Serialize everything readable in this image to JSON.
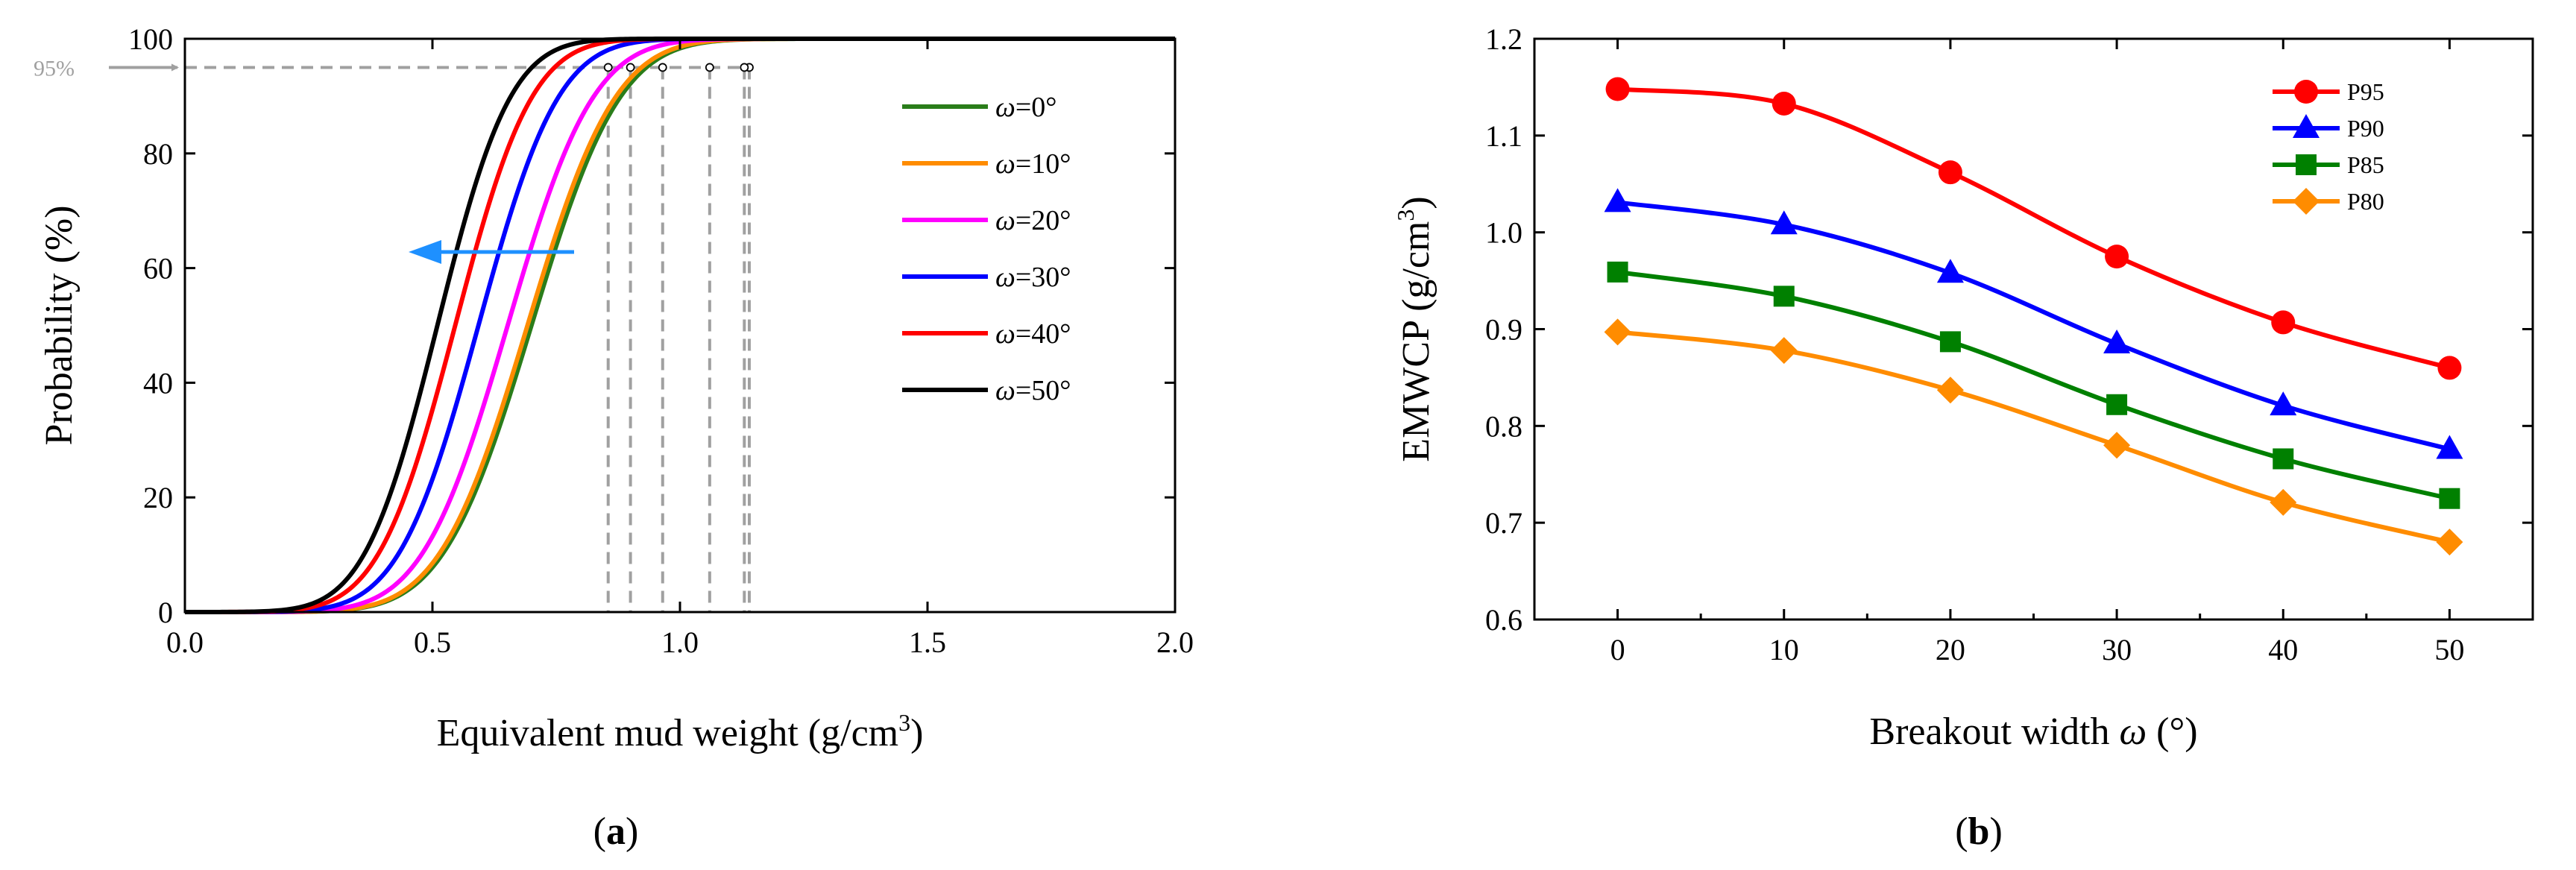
{
  "figure": {
    "panel_a_label": "a",
    "panel_b_label": "b"
  },
  "chart_data": [
    {
      "id": "a",
      "type": "line",
      "title": "",
      "xlabel": "Equivalent mud weight (g/cm",
      "xlabel_sup": "3",
      "xlabel_end": ")",
      "ylabel": "Probability (%)",
      "xlim": [
        0,
        2.0
      ],
      "ylim": [
        0,
        100
      ],
      "xticks": [
        0.0,
        0.5,
        1.0,
        1.5,
        2.0
      ],
      "xtick_labels": [
        "0.0",
        "0.5",
        "1.0",
        "1.5",
        "2.0"
      ],
      "yticks": [
        0,
        20,
        40,
        60,
        80,
        100
      ],
      "ytick_labels": [
        "0",
        "20",
        "40",
        "60",
        "80",
        "100"
      ],
      "grid": false,
      "legend_position": "right",
      "reference_line": {
        "y": 95,
        "label": "95%"
      },
      "arrow_note": "arrow pointing left: curves shift to lower mud weight as breakout width increases",
      "series": [
        {
          "name": "ω=0°",
          "symbol": "ω",
          "suffix": "=0°",
          "color": "#2a7d1a",
          "mu": 0.7,
          "s": 0.141,
          "x_at_95": 1.14
        },
        {
          "name": "ω=10°",
          "symbol": "ω",
          "suffix": "=10°",
          "color": "#ff8c00",
          "mu": 0.692,
          "s": 0.14,
          "x_at_95": 1.13
        },
        {
          "name": "ω=20°",
          "symbol": "ω",
          "suffix": "=20°",
          "color": "#ff00ff",
          "mu": 0.652,
          "s": 0.136,
          "x_at_95": 1.06
        },
        {
          "name": "ω=30°",
          "symbol": "ω",
          "suffix": "=30°",
          "color": "#0000ff",
          "mu": 0.593,
          "s": 0.127,
          "x_at_95": 0.965
        },
        {
          "name": "ω=40°",
          "symbol": "ω",
          "suffix": "=40°",
          "color": "#ff0000",
          "mu": 0.546,
          "s": 0.122,
          "x_at_95": 0.9
        },
        {
          "name": "ω=50°",
          "symbol": "ω",
          "suffix": "=50°",
          "color": "#000000",
          "mu": 0.51,
          "s": 0.116,
          "x_at_95": 0.855
        }
      ]
    },
    {
      "id": "b",
      "type": "line",
      "title": "",
      "xlabel": "Breakout width ",
      "xlabel_symbol": "ω",
      "xlabel_end": " (°)",
      "ylabel": "EMWCP (g/cm",
      "ylabel_sup": "3",
      "ylabel_end": ")",
      "xlim": [
        -5,
        55
      ],
      "ylim": [
        0.6,
        1.2
      ],
      "x": [
        0,
        10,
        20,
        30,
        40,
        50
      ],
      "xticks": [
        0,
        10,
        20,
        30,
        40,
        50
      ],
      "xtick_labels": [
        "0",
        "10",
        "20",
        "30",
        "40",
        "50"
      ],
      "yticks": [
        0.6,
        0.7,
        0.8,
        0.9,
        1.0,
        1.1,
        1.2
      ],
      "ytick_labels": [
        "0.6",
        "0.7",
        "0.8",
        "0.9",
        "1.0",
        "1.1",
        "1.2"
      ],
      "grid": false,
      "legend_position": "top-right",
      "series": [
        {
          "name": "P95",
          "color": "#ff0000",
          "marker": "circle",
          "values": [
            1.148,
            1.133,
            1.062,
            0.975,
            0.907,
            0.86
          ]
        },
        {
          "name": "P90",
          "color": "#0000ff",
          "marker": "triangle",
          "values": [
            1.031,
            1.008,
            0.958,
            0.885,
            0.821,
            0.776
          ]
        },
        {
          "name": "P85",
          "color": "#008000",
          "marker": "square",
          "values": [
            0.959,
            0.934,
            0.887,
            0.822,
            0.766,
            0.725
          ]
        },
        {
          "name": "P80",
          "color": "#ff8c00",
          "marker": "diamond",
          "values": [
            0.897,
            0.878,
            0.837,
            0.78,
            0.721,
            0.68
          ]
        }
      ]
    }
  ]
}
